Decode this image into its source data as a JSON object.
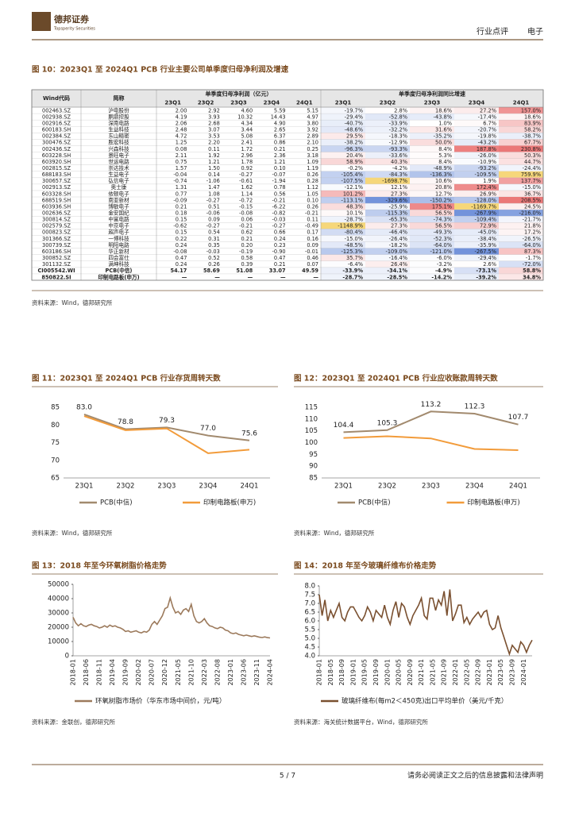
{
  "header": {
    "brand": "德邦证券",
    "brand_en": "Topsperity Securities",
    "section": "行业点评",
    "industry": "电子"
  },
  "figures": [
    {
      "title": "图 10：2023Q1 至 2024Q1 PCB 行业主要公司单季度归母净利润及增速",
      "source": "资料来源：Wind，德邦研究所"
    },
    {
      "title": "图 11：2023Q1 至 2024Q1 PCB 行业存货周转天数",
      "source": "资料来源：Wind，德邦研究所"
    },
    {
      "title": "图 12：2023Q1 至 2024Q1 PCB 行业应收账款周转天数",
      "source": "资料来源：Wind，德邦研究所"
    },
    {
      "title": "图 13：2018 年至今环氧树脂价格走势",
      "source": "资料来源：金联创，德邦研究所"
    },
    {
      "title": "图 14：2018 年至今玻璃纤维布价格走势",
      "source": "资料来源：海关统计数据平台，Wind，德邦研究所"
    }
  ],
  "table": {
    "head": [
      "Wind代码",
      "简称",
      "单季度归母净利润（亿元）",
      "单季度归母净利润同比增速"
    ],
    "subhead": [
      "23Q1",
      "23Q2",
      "23Q3",
      "23Q4",
      "24Q1",
      "23Q1",
      "23Q2",
      "23Q3",
      "23Q4",
      "24Q1"
    ],
    "rows": [
      [
        "002463.SZ",
        "沪电股份",
        "2.00",
        "2.92",
        "4.60",
        "5.59",
        "5.15",
        "-19.7%",
        "2.8%",
        "18.6%",
        "27.2%",
        "157.0%"
      ],
      [
        "002938.SZ",
        "鹏鼎控股",
        "4.19",
        "3.93",
        "10.32",
        "14.43",
        "4.97",
        "-29.4%",
        "-52.8%",
        "-43.8%",
        "-17.4%",
        "18.6%"
      ],
      [
        "002916.SZ",
        "深南电路",
        "2.06",
        "2.68",
        "4.34",
        "4.90",
        "3.80",
        "-40.7%",
        "-33.9%",
        "1.0%",
        "6.7%",
        "83.9%"
      ],
      [
        "600183.SH",
        "生益科技",
        "2.48",
        "3.07",
        "3.44",
        "2.65",
        "3.92",
        "-48.6%",
        "-32.2%",
        "31.6%",
        "-20.7%",
        "58.2%"
      ],
      [
        "002384.SZ",
        "东山精密",
        "4.72",
        "3.53",
        "5.08",
        "6.37",
        "2.89",
        "29.5%",
        "-18.3%",
        "-35.2%",
        "-19.8%",
        "-38.7%"
      ],
      [
        "300476.SZ",
        "胜宏科技",
        "1.25",
        "2.20",
        "2.41",
        "0.86",
        "2.10",
        "-38.2%",
        "-12.9%",
        "50.0%",
        "-43.2%",
        "67.7%"
      ],
      [
        "002436.SZ",
        "兴森科技",
        "0.08",
        "0.11",
        "1.72",
        "0.21",
        "0.25",
        "-96.3%",
        "-93.3%",
        "8.4%",
        "187.8%",
        "230.8%"
      ],
      [
        "603228.SH",
        "景旺电子",
        "2.11",
        "1.92",
        "2.96",
        "2.36",
        "3.18",
        "20.4%",
        "-33.6%",
        "5.3%",
        "-26.0%",
        "50.3%"
      ],
      [
        "603920.SH",
        "世运电路",
        "0.75",
        "1.21",
        "1.78",
        "1.21",
        "1.09",
        "58.9%",
        "40.3%",
        "8.4%",
        "-10.9%",
        "44.7%"
      ],
      [
        "002815.SZ",
        "崇达技术",
        "1.57",
        "1.50",
        "0.92",
        "0.10",
        "1.19",
        "-0.2%",
        "-4.2%",
        "-48.9%",
        "-93.2%",
        "-24.4%"
      ],
      [
        "688183.SH",
        "生益电子",
        "-0.04",
        "0.14",
        "-0.27",
        "-0.07",
        "0.26",
        "-105.4%",
        "-84.3%",
        "-136.3%",
        "-109.5%",
        "759.9%"
      ],
      [
        "300657.SZ",
        "弘信电子",
        "-0.74",
        "-1.06",
        "-0.61",
        "-1.94",
        "0.28",
        "-107.5%",
        "-1698.7%",
        "10.6%",
        "1.9%",
        "137.7%"
      ],
      [
        "002913.SZ",
        "奥士康",
        "1.31",
        "1.47",
        "1.62",
        "0.78",
        "1.12",
        "-12.1%",
        "12.1%",
        "20.8%",
        "172.4%",
        "-15.0%"
      ],
      [
        "603328.SH",
        "依顿电子",
        "0.77",
        "1.08",
        "1.14",
        "0.56",
        "1.05",
        "101.2%",
        "27.3%",
        "12.7%",
        "26.9%",
        "36.7%"
      ],
      [
        "688519.SH",
        "南亚新材",
        "-0.09",
        "-0.27",
        "-0.72",
        "-0.21",
        "0.10",
        "-113.1%",
        "-329.6%",
        "-150.2%",
        "-128.0%",
        "208.5%"
      ],
      [
        "603936.SH",
        "博敏电子",
        "0.21",
        "0.51",
        "-0.15",
        "-6.22",
        "0.26",
        "48.3%",
        "-25.9%",
        "175.1%",
        "-1169.7%",
        "24.5%"
      ],
      [
        "002636.SZ",
        "金安国纪",
        "0.18",
        "-0.06",
        "-0.08",
        "-0.82",
        "-0.21",
        "10.1%",
        "-115.3%",
        "56.5%",
        "-267.9%",
        "-216.0%"
      ],
      [
        "300814.SZ",
        "中富电路",
        "0.15",
        "0.09",
        "0.06",
        "-0.03",
        "0.11",
        "-28.7%",
        "-65.3%",
        "-74.3%",
        "-109.4%",
        "-21.7%"
      ],
      [
        "002579.SZ",
        "中京电子",
        "-0.62",
        "-0.27",
        "-0.21",
        "-0.27",
        "-0.49",
        "-1148.9%",
        "27.3%",
        "56.5%",
        "72.9%",
        "21.8%"
      ],
      [
        "000823.SZ",
        "超声电子",
        "0.15",
        "0.54",
        "0.62",
        "0.66",
        "0.17",
        "-80.4%",
        "-46.4%",
        "-49.3%",
        "-45.0%",
        "17.2%"
      ],
      [
        "301366.SZ",
        "一博科技",
        "0.22",
        "0.31",
        "0.21",
        "0.24",
        "0.16",
        "-15.0%",
        "-26.4%",
        "-52.3%",
        "-38.4%",
        "-26.5%"
      ],
      [
        "300739.SZ",
        "明阳电路",
        "0.24",
        "0.35",
        "0.20",
        "0.23",
        "0.09",
        "-48.5%",
        "-18.2%",
        "-64.0%",
        "-35.9%",
        "-64.0%"
      ],
      [
        "603186.SH",
        "华正新材",
        "-0.08",
        "-0.03",
        "-0.19",
        "-0.90",
        "-0.01",
        "-125.3%",
        "-109.0%",
        "-121.0%",
        "-267.5%",
        "87.3%"
      ],
      [
        "300852.SZ",
        "四会富仕",
        "0.47",
        "0.52",
        "0.58",
        "0.47",
        "0.46",
        "35.7%",
        "-16.4%",
        "-6.0%",
        "-29.4%",
        "-1.7%"
      ],
      [
        "301132.SZ",
        "满坤科技",
        "0.24",
        "0.26",
        "0.39",
        "0.21",
        "0.07",
        "-6.4%",
        "26.4%",
        "-3.2%",
        "2.6%",
        "-72.0%"
      ],
      [
        "CI005542.WI",
        "PCB(中信)",
        "54.17",
        "58.69",
        "51.08",
        "33.07",
        "49.59",
        "-33.9%",
        "-34.1%",
        "-4.9%",
        "-73.1%",
        "58.8%"
      ],
      [
        "850822.SI",
        "印制电路板(申万)",
        "—",
        "—",
        "—",
        "—",
        "—",
        "-28.7%",
        "-28.5%",
        "-14.2%",
        "-39.2%",
        "34.8%"
      ]
    ]
  },
  "chart_data": [
    {
      "type": "line",
      "categories": [
        "23Q1",
        "23Q2",
        "23Q3",
        "23Q4",
        "24Q1"
      ],
      "ylim": [
        65,
        85
      ],
      "yticks": [
        65,
        70,
        75,
        80,
        85
      ],
      "grid": false,
      "legend": "bottom",
      "series": [
        {
          "name": "PCB(中信)",
          "color": "#a28a6e",
          "values": [
            83.0,
            78.8,
            79.3,
            77.0,
            75.6
          ],
          "value_labels": [
            "83.0",
            "78.8",
            "79.3",
            "77.0",
            "75.6"
          ]
        },
        {
          "name": "印制电路板(申万)",
          "color": "#f29b3a",
          "values": [
            82.5,
            78.5,
            79.0,
            72.0,
            73.0
          ]
        }
      ]
    },
    {
      "type": "line",
      "categories": [
        "23Q1",
        "23Q2",
        "23Q3",
        "23Q4",
        "24Q1"
      ],
      "ylim": [
        85,
        115
      ],
      "yticks": [
        85,
        90,
        95,
        100,
        105,
        110,
        115
      ],
      "grid": false,
      "legend": "bottom",
      "series": [
        {
          "name": "PCB(中信)",
          "color": "#a28a6e",
          "values": [
            104.4,
            105.3,
            113.2,
            112.3,
            107.7
          ],
          "value_labels": [
            "104.4",
            "105.3",
            "113.2",
            "112.3",
            "107.7"
          ]
        },
        {
          "name": "印制电路板(申万)",
          "color": "#f29b3a",
          "values": [
            102.0,
            102.7,
            101.8,
            97.3,
            96.8
          ]
        }
      ]
    },
    {
      "type": "line",
      "categories": [
        "2018-01",
        null,
        null,
        null,
        null,
        "2018-06",
        null,
        null,
        null,
        null,
        "2018-11",
        null,
        null,
        null,
        null,
        "2019-04",
        null,
        null,
        null,
        null,
        "2019-09",
        null,
        null,
        null,
        null,
        "2020-02",
        null,
        null,
        null,
        null,
        "2020-07",
        null,
        null,
        null,
        null,
        "2020-12",
        null,
        null,
        null,
        null,
        "2021-05",
        null,
        null,
        null,
        null,
        "2021-10",
        null,
        null,
        null,
        null,
        "2022-03",
        null,
        null,
        null,
        null,
        "2022-08",
        null,
        null,
        null,
        null,
        "2023-01",
        null,
        null,
        null,
        null,
        "2023-06",
        null,
        null,
        null,
        null,
        "2023-11",
        null,
        null,
        null,
        null,
        "2024-04"
      ],
      "ylim": [
        0,
        50000
      ],
      "yticks": [
        0,
        10000,
        20000,
        30000,
        40000,
        50000
      ],
      "grid": false,
      "legend": "bottom",
      "series": [
        {
          "name": "环氧树脂市场价（华东市场中间价，元/吨）",
          "color": "#9c7a5c",
          "values": [
            27000,
            23000,
            21000,
            22500,
            21000,
            20500,
            21500,
            22000,
            21000,
            20500,
            19500,
            20000,
            21000,
            20000,
            21500,
            20500,
            21000,
            20000,
            19500,
            18500,
            17000,
            17500,
            16500,
            17000,
            17500,
            16500,
            16000,
            17000,
            16500,
            18000,
            22000,
            24000,
            22000,
            25000,
            28000,
            33000,
            34000,
            40500,
            34000,
            30000,
            31000,
            29000,
            32000,
            33000,
            31000,
            36000,
            28000,
            24000,
            23000,
            24000,
            26000,
            23000,
            21000,
            20500,
            19500,
            19000,
            20000,
            19500,
            18000,
            17500,
            16000,
            15500,
            16000,
            15000,
            14500,
            14000,
            14500,
            14000,
            13500,
            14000,
            13500,
            13000,
            12800,
            13200,
            12700,
            12500
          ]
        }
      ]
    },
    {
      "type": "line",
      "categories": [
        "2018-01",
        null,
        null,
        null,
        "2018-05",
        null,
        null,
        null,
        "2018-09",
        null,
        null,
        null,
        "2019-01",
        null,
        null,
        null,
        "2019-05",
        null,
        null,
        null,
        "2019-09",
        null,
        null,
        null,
        "2020-01",
        null,
        null,
        null,
        "2020-05",
        null,
        null,
        null,
        "2020-09",
        null,
        null,
        null,
        "2021-01",
        null,
        null,
        null,
        "2021-05",
        null,
        null,
        null,
        "2021-09",
        null,
        null,
        null,
        "2022-01",
        null,
        null,
        null,
        "2022-05",
        null,
        null,
        null,
        "2022-09",
        null,
        null,
        null,
        "2023-01",
        null,
        null,
        null,
        "2023-05",
        null,
        null,
        null,
        "2023-09",
        null,
        null,
        null,
        "2024-01",
        null,
        null,
        null
      ],
      "ylim": [
        4.0,
        8.0
      ],
      "yticks": [
        {
          "value": 4,
          "label": "4.0"
        },
        4.5,
        {
          "value": 5,
          "label": "5.0"
        },
        5.5,
        {
          "value": 6,
          "label": "6.0"
        },
        6.5,
        {
          "value": 7,
          "label": "7.0"
        },
        7.5,
        {
          "value": 8,
          "label": "8.0"
        }
      ],
      "grid": false,
      "legend": "bottom",
      "series": [
        {
          "name": "玻璃纤维布(每m2＜450克)出口平均单价（美元/千克）",
          "color": "#7a5030",
          "values": [
            7.5,
            6.3,
            7.2,
            6.0,
            6.6,
            6.2,
            6.6,
            7.0,
            6.2,
            6.0,
            6.5,
            6.8,
            6.8,
            6.5,
            6.2,
            6.0,
            6.3,
            6.8,
            6.5,
            6.0,
            6.6,
            6.4,
            6.2,
            6.9,
            6.2,
            5.8,
            6.6,
            7.1,
            6.2,
            7.0,
            6.8,
            6.2,
            5.8,
            6.3,
            6.6,
            6.9,
            7.3,
            6.3,
            6.1,
            7.3,
            7.3,
            6.6,
            7.2,
            6.9,
            7.7,
            6.3,
            7.8,
            6.0,
            6.4,
            6.9,
            6.9,
            5.9,
            6.2,
            5.8,
            6.1,
            6.3,
            6.5,
            6.2,
            6.5,
            6.6,
            5.8,
            5.5,
            5.6,
            6.3,
            5.6,
            5.1,
            4.6,
            4.1,
            4.6,
            4.4,
            4.2,
            4.8,
            4.6,
            4.2,
            4.6,
            4.9
          ]
        }
      ]
    }
  ],
  "footer": {
    "page": "5 / 7",
    "disclaimer": "请务必阅读正文之后的信息披露和法律声明"
  }
}
